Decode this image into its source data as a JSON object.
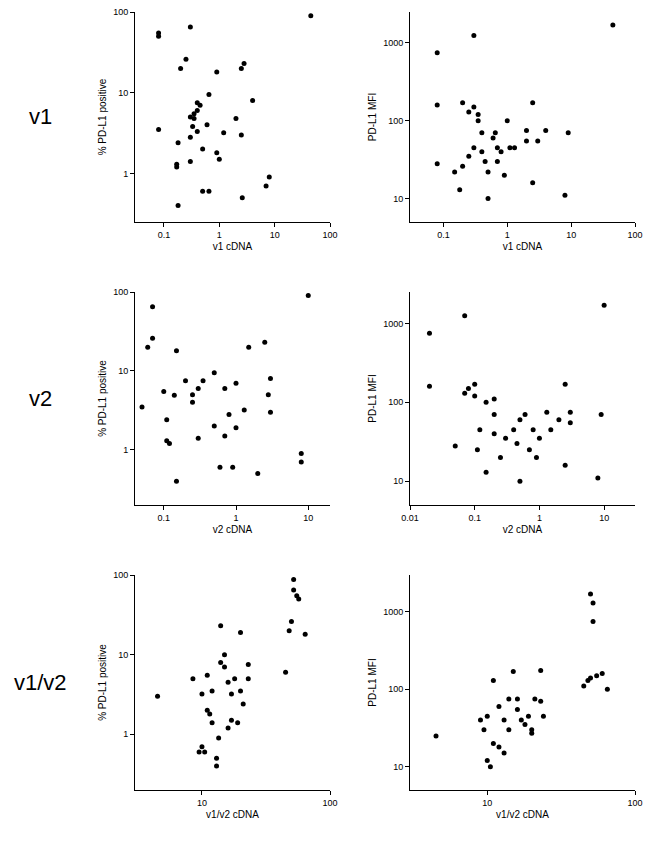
{
  "chart_data": [
    {
      "type": "scatter",
      "annotations": [
        "v1"
      ],
      "x_label": "v1 cDNA",
      "y_label": "% PD-L1 positive",
      "log": true,
      "grid": false,
      "marker": "circle",
      "color": "#000000",
      "xlim": [
        0.03,
        100
      ],
      "ylim": [
        0.25,
        100
      ],
      "xticks": [
        0.1,
        1,
        10,
        100
      ],
      "yticks": [
        1,
        10,
        100
      ],
      "x": [
        0.08,
        0.08,
        0.08,
        0.3,
        0.2,
        0.25,
        0.18,
        0.17,
        0.17,
        0.18,
        0.3,
        0.35,
        0.4,
        0.35,
        0.33,
        0.3,
        0.4,
        0.45,
        0.5,
        0.5,
        0.65,
        0.6,
        0.65,
        0.9,
        0.9,
        1,
        1.2,
        2,
        2.5,
        2.8,
        2.5,
        2.6,
        4,
        7,
        8,
        45,
        0.3,
        0.4
      ],
      "values": [
        55,
        50,
        3.5,
        65,
        20,
        26,
        2.4,
        1.2,
        1.3,
        0.4,
        5,
        5.5,
        7.5,
        4.8,
        3.8,
        2.8,
        6,
        7,
        2,
        0.6,
        0.6,
        4,
        9.5,
        18,
        1.8,
        1.5,
        3.2,
        4.8,
        20,
        23,
        3,
        0.5,
        8,
        0.7,
        0.9,
        90,
        1.4,
        3.3
      ]
    },
    {
      "type": "scatter",
      "x_label": "v1 cDNA",
      "y_label": "PD-L1 MFI",
      "log": true,
      "grid": false,
      "marker": "circle",
      "color": "#000000",
      "xlim": [
        0.03,
        100
      ],
      "ylim": [
        5,
        2500
      ],
      "xticks": [
        0.1,
        1,
        10,
        100
      ],
      "yticks": [
        10,
        100,
        1000
      ],
      "x": [
        0.08,
        0.08,
        0.08,
        0.3,
        0.15,
        0.2,
        0.18,
        0.2,
        0.25,
        0.3,
        0.35,
        0.4,
        0.35,
        0.3,
        0.25,
        0.4,
        0.5,
        0.45,
        0.5,
        0.6,
        0.65,
        0.7,
        0.9,
        1,
        1.1,
        1.3,
        2,
        2,
        2.5,
        2.5,
        3,
        4,
        8,
        9,
        45,
        0.8,
        0.7
      ],
      "values": [
        750,
        160,
        28,
        1250,
        22,
        26,
        13,
        170,
        130,
        150,
        120,
        70,
        100,
        45,
        35,
        40,
        22,
        30,
        10,
        60,
        70,
        45,
        20,
        100,
        45,
        45,
        55,
        75,
        170,
        16,
        55,
        75,
        11,
        70,
        1700,
        40,
        30
      ]
    },
    {
      "type": "scatter",
      "annotations": [
        "v2"
      ],
      "x_label": "v2 cDNA",
      "y_label": "% PD-L1 positive",
      "log": true,
      "grid": false,
      "marker": "circle",
      "color": "#000000",
      "xlim": [
        0.04,
        20
      ],
      "ylim": [
        0.2,
        100
      ],
      "xticks": [
        0.1,
        1,
        10
      ],
      "yticks": [
        1,
        10,
        100
      ],
      "x": [
        0.05,
        0.06,
        0.07,
        0.07,
        0.1,
        0.11,
        0.11,
        0.12,
        0.14,
        0.15,
        0.15,
        0.2,
        0.25,
        0.3,
        0.3,
        0.35,
        0.5,
        0.5,
        0.6,
        0.7,
        0.7,
        0.8,
        0.9,
        1,
        1,
        1.3,
        1.5,
        2,
        2.5,
        2.8,
        3,
        3,
        8,
        8,
        10,
        0.25
      ],
      "values": [
        3.5,
        20,
        65,
        26,
        5.5,
        2.4,
        1.3,
        1.2,
        4.9,
        0.4,
        18,
        7.5,
        5,
        1.4,
        6,
        7.5,
        9.5,
        2,
        0.6,
        1.5,
        6,
        2.8,
        0.6,
        1.9,
        7,
        3.2,
        20,
        0.5,
        23,
        5,
        8,
        3,
        0.7,
        0.9,
        90,
        4
      ]
    },
    {
      "type": "scatter",
      "x_label": "v2 cDNA",
      "y_label": "PD-L1 MFI",
      "log": true,
      "grid": false,
      "marker": "circle",
      "color": "#000000",
      "xlim": [
        0.01,
        30
      ],
      "ylim": [
        5,
        2500
      ],
      "xticks": [
        0.01,
        0.1,
        1,
        10
      ],
      "yticks": [
        10,
        100,
        1000
      ],
      "x": [
        0.02,
        0.02,
        0.05,
        0.07,
        0.07,
        0.08,
        0.1,
        0.1,
        0.11,
        0.12,
        0.15,
        0.15,
        0.2,
        0.2,
        0.25,
        0.3,
        0.4,
        0.45,
        0.5,
        0.5,
        0.6,
        0.7,
        0.8,
        0.9,
        1,
        1.3,
        1.5,
        2,
        2.5,
        2.5,
        3,
        3,
        8,
        9,
        10,
        0.2
      ],
      "values": [
        750,
        160,
        28,
        1250,
        130,
        150,
        170,
        120,
        25,
        45,
        100,
        13,
        70,
        40,
        20,
        35,
        45,
        30,
        10,
        60,
        70,
        25,
        45,
        20,
        35,
        75,
        45,
        60,
        170,
        16,
        75,
        55,
        11,
        70,
        1700,
        110
      ]
    },
    {
      "type": "scatter",
      "annotations": [
        "v1/v2"
      ],
      "x_label": "v1/v2 cDNA",
      "y_label": "% PD-L1 positive",
      "log": true,
      "grid": false,
      "marker": "circle",
      "color": "#000000",
      "xlim": [
        3,
        100
      ],
      "ylim": [
        0.2,
        100
      ],
      "xticks": [
        10,
        100
      ],
      "yticks": [
        1,
        10,
        100
      ],
      "x": [
        4.5,
        8.5,
        9.5,
        10,
        10,
        10.5,
        11,
        11,
        11.5,
        12,
        12,
        13,
        13,
        13.5,
        14,
        14,
        15,
        15,
        16,
        16,
        17,
        17,
        18,
        19,
        20,
        20,
        21,
        23,
        23,
        45,
        48,
        50,
        52,
        52,
        55,
        57,
        64
      ],
      "values": [
        3,
        5,
        0.6,
        3.2,
        0.7,
        0.6,
        5.5,
        2,
        1.8,
        3.5,
        1.4,
        0.4,
        0.5,
        0.9,
        23,
        8,
        10,
        7,
        4.5,
        1.2,
        1.5,
        3.2,
        5,
        1.4,
        19,
        3.5,
        2.4,
        5,
        7.5,
        6,
        20,
        26,
        88,
        65,
        55,
        50,
        18
      ]
    },
    {
      "type": "scatter",
      "x_label": "v1/v2 cDNA",
      "y_label": "PD-L1 MFI",
      "log": true,
      "grid": false,
      "marker": "circle",
      "color": "#000000",
      "xlim": [
        3,
        100
      ],
      "ylim": [
        5,
        3000
      ],
      "xticks": [
        10,
        100
      ],
      "yticks": [
        10,
        100,
        1000
      ],
      "x": [
        4.5,
        9,
        9.5,
        10,
        10,
        10.5,
        11,
        11,
        12,
        12,
        13,
        13,
        14,
        14,
        15,
        16,
        16,
        17,
        18,
        19,
        20,
        20,
        21,
        23,
        23,
        24,
        45,
        48,
        50,
        50,
        52,
        52,
        55,
        60,
        65
      ],
      "values": [
        25,
        40,
        30,
        45,
        12,
        10,
        20,
        130,
        18,
        60,
        15,
        40,
        75,
        30,
        170,
        75,
        55,
        40,
        35,
        45,
        27,
        30,
        75,
        70,
        175,
        45,
        110,
        130,
        140,
        1700,
        1300,
        750,
        150,
        160,
        100
      ]
    }
  ]
}
